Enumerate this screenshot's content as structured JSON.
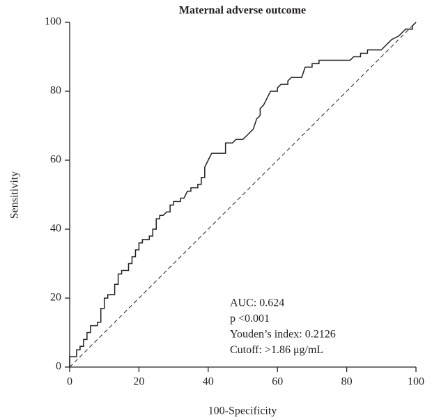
{
  "chart_data": {
    "type": "line",
    "title": "Maternal adverse outcome",
    "x_label": "100-Specificity",
    "y_label": "Sensitivity",
    "xlim": [
      0,
      100
    ],
    "ylim": [
      0,
      100
    ],
    "xticks": [
      0,
      20,
      40,
      60,
      80,
      100
    ],
    "yticks": [
      0,
      20,
      40,
      60,
      80,
      100
    ],
    "grid": false,
    "annotations": [
      "AUC: 0.624",
      "p <0.001",
      "Youden’s index: 0.2126",
      "Cutoff: >1.86 μg/mL"
    ],
    "series": [
      {
        "color": "#231f20",
        "dashed": false,
        "x": [
          0,
          0,
          2,
          2,
          3,
          3,
          4,
          4,
          5,
          5,
          6,
          6,
          8,
          8,
          9,
          9,
          10,
          10,
          11,
          11,
          13,
          13,
          14,
          14,
          15,
          15,
          17,
          17,
          18,
          18,
          19,
          19,
          20,
          20,
          21,
          21,
          23,
          23,
          24,
          24,
          25,
          25,
          26,
          26,
          27,
          28,
          29,
          29,
          30,
          30,
          32,
          32,
          33,
          34,
          35,
          35,
          37,
          37,
          38,
          38,
          39,
          39,
          40,
          41,
          45,
          45,
          47,
          48,
          50,
          51,
          52,
          53,
          54,
          55,
          55,
          56,
          57,
          58,
          60,
          60,
          61,
          63,
          63,
          64,
          67,
          68,
          70,
          70,
          72,
          72,
          81,
          82,
          84,
          84,
          86,
          86,
          90,
          91,
          92,
          93,
          95,
          96,
          97,
          99,
          99,
          100
        ],
        "values": [
          0,
          3,
          3,
          5,
          5,
          6,
          6,
          8,
          8,
          10,
          10,
          12,
          12,
          13,
          13,
          17,
          17,
          20,
          20,
          21,
          21,
          24,
          24,
          27,
          27,
          28,
          28,
          30,
          30,
          32,
          32,
          34,
          34,
          36,
          36,
          37,
          37,
          38,
          38,
          40,
          40,
          43,
          43,
          44,
          44,
          45,
          45,
          47,
          47,
          48,
          48,
          49,
          49,
          51,
          51,
          52,
          52,
          53,
          53,
          55,
          55,
          58,
          60,
          62,
          62,
          65,
          65,
          66,
          66,
          67,
          68,
          69,
          72,
          73,
          75,
          76,
          78,
          80,
          80,
          81,
          82,
          82,
          83,
          84,
          84,
          87,
          87,
          88,
          88,
          89,
          89,
          90,
          90,
          91,
          91,
          92,
          92,
          93,
          94,
          95,
          96,
          97,
          98,
          98,
          99,
          100
        ]
      },
      {
        "color": "#231f20",
        "dashed": true,
        "x": [
          0,
          100
        ],
        "values": [
          0,
          100
        ]
      }
    ]
  }
}
